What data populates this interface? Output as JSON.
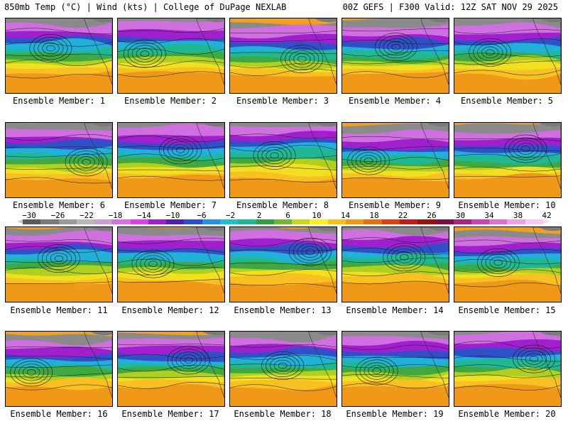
{
  "header": {
    "left": "850mb Temp (°C) | Wind (kts) | College of DuPage NEXLAB",
    "right": "00Z GEFS | F300 Valid: 12Z SAT NOV 29 2025"
  },
  "members": [
    {
      "label": "Ensemble Member: 1"
    },
    {
      "label": "Ensemble Member: 2"
    },
    {
      "label": "Ensemble Member: 3"
    },
    {
      "label": "Ensemble Member: 4"
    },
    {
      "label": "Ensemble Member: 5"
    },
    {
      "label": "Ensemble Member: 6"
    },
    {
      "label": "Ensemble Member: 7"
    },
    {
      "label": "Ensemble Member: 8"
    },
    {
      "label": "Ensemble Member: 9"
    },
    {
      "label": "Ensemble Member: 10"
    },
    {
      "label": "Ensemble Member: 11"
    },
    {
      "label": "Ensemble Member: 12"
    },
    {
      "label": "Ensemble Member: 13"
    },
    {
      "label": "Ensemble Member: 14"
    },
    {
      "label": "Ensemble Member: 15"
    },
    {
      "label": "Ensemble Member: 16"
    },
    {
      "label": "Ensemble Member: 17"
    },
    {
      "label": "Ensemble Member: 18"
    },
    {
      "label": "Ensemble Member: 19"
    },
    {
      "label": "Ensemble Member: 20"
    }
  ],
  "colorbar": {
    "ticks": [
      "−30",
      "−26",
      "−22",
      "−18",
      "−14",
      "−10",
      "−6",
      "−2",
      "2",
      "6",
      "10",
      "14",
      "18",
      "22",
      "26",
      "30",
      "34",
      "38",
      "42"
    ],
    "colors": [
      "#5a5a5a",
      "#7a7a7a",
      "#9a9a9a",
      "#b8b8b8",
      "#c8a0d8",
      "#d870e0",
      "#e040e8",
      "#a020d0",
      "#5020b0",
      "#2850c8",
      "#2890e0",
      "#20c0d0",
      "#20b890",
      "#30a040",
      "#70b830",
      "#c8d820",
      "#f8f020",
      "#f8c020",
      "#f09818",
      "#e87010",
      "#e04010",
      "#c81818",
      "#a01010",
      "#801040",
      "#b02080",
      "#d040b0",
      "#e070d0",
      "#f0a0e8",
      "#f8c8f0"
    ]
  }
}
